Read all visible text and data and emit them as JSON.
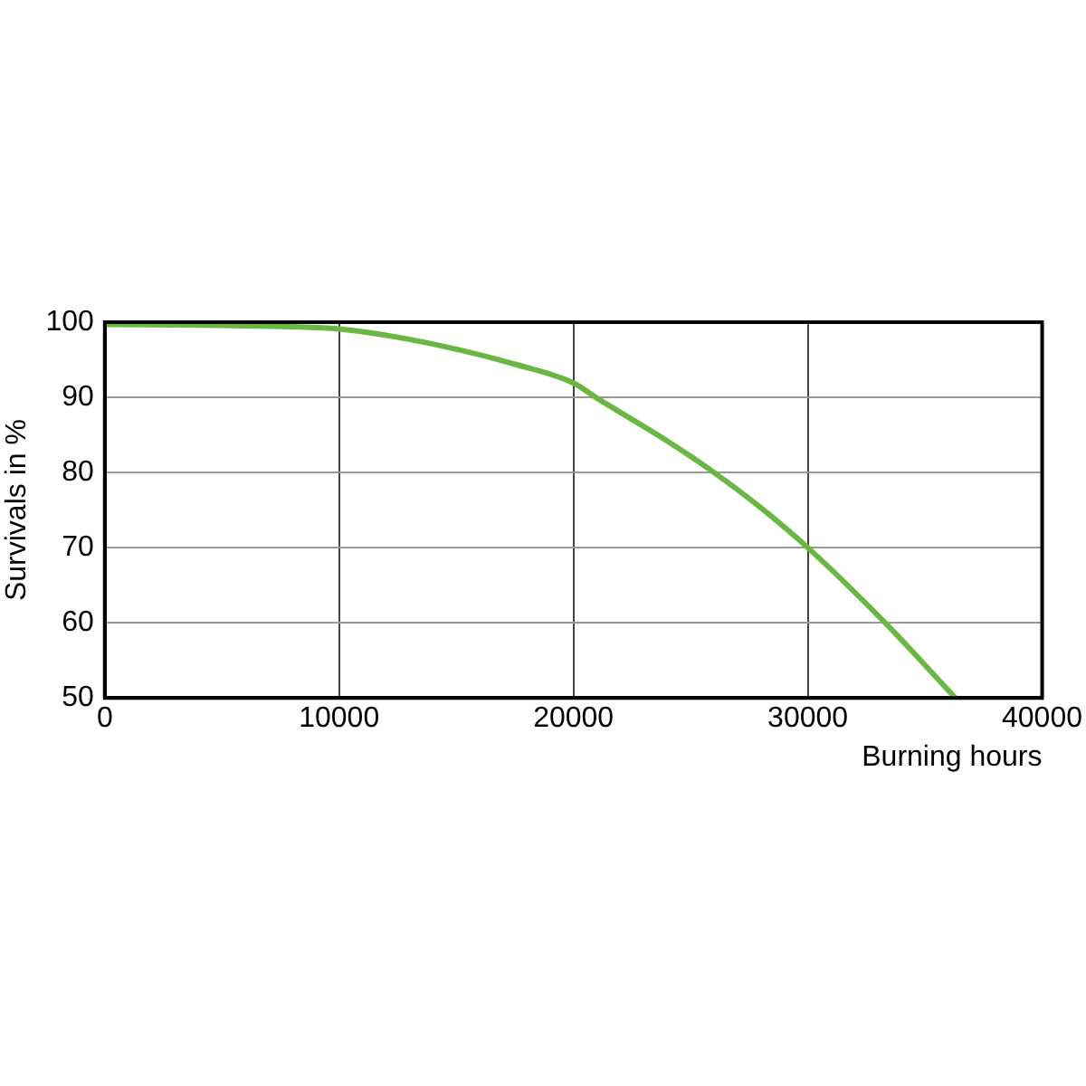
{
  "chart_data": {
    "type": "line",
    "xlabel": "Burning hours",
    "ylabel": "Survivals in %",
    "x": [
      0,
      4000,
      8000,
      10000,
      12500,
      15000,
      17500,
      20000,
      21000,
      24000,
      26000,
      28000,
      30000,
      33300,
      36300
    ],
    "series": [
      {
        "color": "#6ab743",
        "values": [
          99.7,
          99.6,
          99.4,
          99.1,
          98,
          96.4,
          94.4,
          91.9,
          89.9,
          84.2,
          80,
          75.3,
          70,
          60,
          50
        ]
      }
    ],
    "xlim": [
      0,
      40000
    ],
    "ylim": [
      50,
      100
    ],
    "xticks": [
      0,
      10000,
      20000,
      30000,
      40000
    ],
    "yticks": [
      50,
      60,
      70,
      80,
      90,
      100
    ],
    "grid": true,
    "legend": false,
    "marker": "none",
    "line_style": "solid"
  }
}
